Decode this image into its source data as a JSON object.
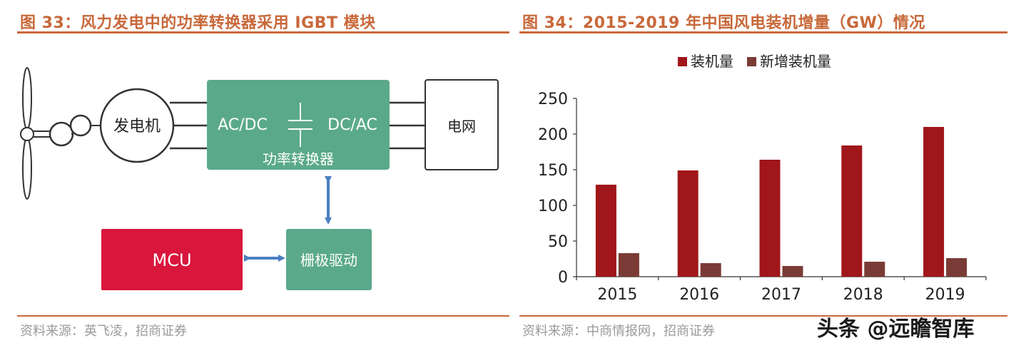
{
  "left_figure": {
    "title": "图 33：风力发电中的功率转换器采用 IGBT 模块",
    "source": "资料来源：英飞凌，招商证券",
    "diagram": {
      "generator_label": "发电机",
      "rectifier_label": "AC/DC",
      "inverter_label": "DC/AC",
      "converter_label": "功率转换器",
      "grid_label": "电网",
      "gate_driver_label": "栅极驱动",
      "mcu_label": "MCU"
    },
    "colors": {
      "converter": "#5aa98b",
      "mcu": "#d9163c",
      "arrow": "#4a7fc1"
    }
  },
  "right_figure": {
    "title": "图 34：2015-2019 年中国风电装机增量（GW）情况",
    "source": "资料来源：中商情报网，招商证券"
  },
  "watermark": "头条 @远瞻智库",
  "chart_data": {
    "type": "bar",
    "categories": [
      "2015",
      "2016",
      "2017",
      "2018",
      "2019"
    ],
    "series": [
      {
        "name": "装机量",
        "values": [
          129,
          149,
          164,
          184,
          210
        ],
        "color": "#a0161a"
      },
      {
        "name": "新增装机量",
        "values": [
          33,
          19,
          15,
          21,
          26
        ],
        "color": "#7a3b36"
      }
    ],
    "ylim": [
      0,
      250
    ],
    "yticks": [
      0,
      50,
      100,
      150,
      200,
      250
    ],
    "legend": "top-center",
    "grid": false
  }
}
